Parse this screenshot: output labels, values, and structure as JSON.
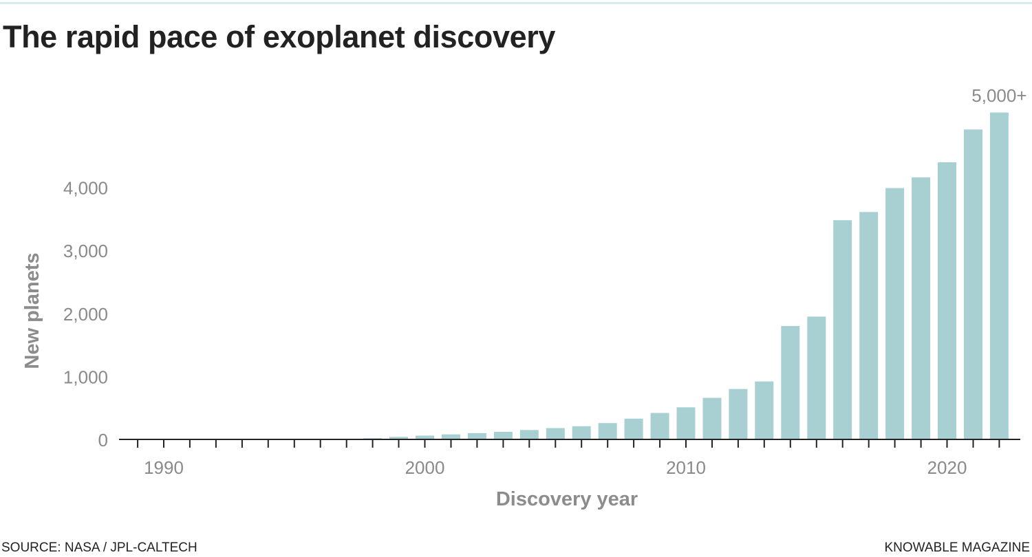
{
  "title": "The rapid pace of exoplanet discovery",
  "footer": {
    "source": "SOURCE: NASA / JPL-CALTECH",
    "credit": "KNOWABLE MAGAZINE"
  },
  "colors": {
    "bar": "#a8d0d2",
    "axis": "#222222",
    "tick_text": "#8a8a8a",
    "axis_title": "#8c8c8c",
    "top_rule": "#d9eced"
  },
  "chart_data": {
    "type": "bar",
    "title": "The rapid pace of exoplanet discovery",
    "xlabel": "Discovery year",
    "ylabel": "New planets",
    "x_ticks": [
      1990,
      2000,
      2010,
      2020
    ],
    "y_ticks": [
      0,
      1000,
      2000,
      3000,
      4000
    ],
    "y_tick_labels": [
      "0",
      "1,000",
      "2,000",
      "3,000",
      "4,000"
    ],
    "xlim": [
      1988.5,
      2022.5
    ],
    "ylim": [
      0,
      5200
    ],
    "grid": false,
    "legend": "none",
    "annotation": {
      "year": 2022,
      "text": "5,000+"
    },
    "categories": [
      1998,
      1999,
      2000,
      2001,
      2002,
      2003,
      2004,
      2005,
      2006,
      2007,
      2008,
      2009,
      2010,
      2011,
      2012,
      2013,
      2014,
      2015,
      2016,
      2017,
      2018,
      2019,
      2020,
      2021,
      2022
    ],
    "values": [
      20,
      40,
      60,
      80,
      100,
      120,
      150,
      180,
      210,
      260,
      330,
      420,
      510,
      660,
      800,
      920,
      1800,
      1950,
      3480,
      3610,
      3990,
      4160,
      4400,
      4920,
      5190
    ]
  }
}
